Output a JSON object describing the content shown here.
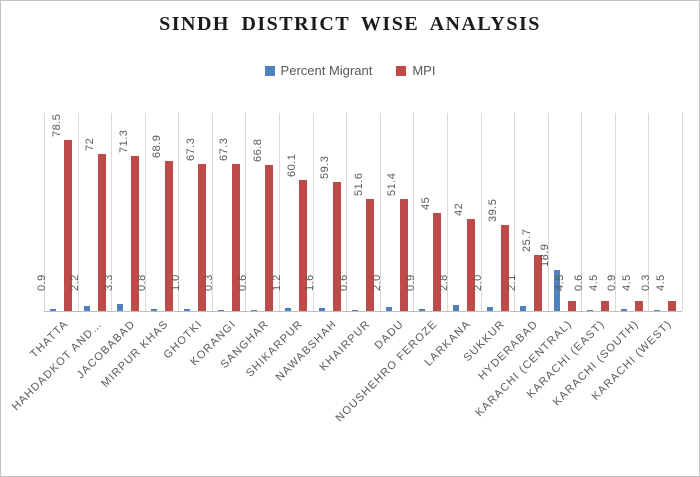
{
  "frame": {
    "background": "#ffffff",
    "border_color": "#c3c3c3"
  },
  "chart_data": {
    "type": "bar",
    "title": "SINDH DISTRICT WISE ANALYSIS",
    "legend_position": "top",
    "grid": "vertical category separators only, no value axis shown",
    "value_axis": {
      "visible": false,
      "implied_range": [
        0,
        90
      ]
    },
    "text_color": "#595959",
    "gridline_color": "#d9d9d9",
    "axis_line_color": "#bfbfbf",
    "categories": [
      "THATTA",
      "HAHDADKOT AND…",
      "JACOBABAD",
      "MIRPUR KHAS",
      "GHOTKI",
      "KORANGI",
      "SANGHAR",
      "SHIKARPUR",
      "NAWABSHAH",
      "KHAIRPUR",
      "DADU",
      "NOUSHEHRO FEROZE",
      "LARKANA",
      "SUKKUR",
      "HYDERABAD",
      "KARACHI (CENTRAL)",
      "KARACHI (EAST)",
      "KARACHI (SOUTH)",
      "KARACHI (WEST)"
    ],
    "series": [
      {
        "name": "Percent Migrant",
        "color": "#4e81bd",
        "values": [
          0.9,
          2.2,
          3.3,
          0.8,
          1.0,
          0.3,
          0.6,
          1.2,
          1.6,
          0.6,
          2.0,
          0.9,
          2.8,
          2.0,
          2.1,
          18.9,
          0.6,
          0.9,
          0.3
        ],
        "labels": [
          "0.9",
          "2.2",
          "3.3",
          "0.8",
          "1.0",
          "0.3",
          "0.6",
          "1.2",
          "1.6",
          "0.6",
          "2.0",
          "0.9",
          "2.8",
          "2.0",
          "2.1",
          "18.9",
          "0.6",
          "0.9",
          "0.3"
        ]
      },
      {
        "name": "MPI",
        "color": "#be4b48",
        "values": [
          78.5,
          72,
          71.3,
          68.9,
          67.3,
          67.3,
          66.8,
          60.1,
          59.3,
          51.6,
          51.4,
          45,
          42,
          39.5,
          25.7,
          4.5,
          4.5,
          4.5,
          4.5
        ],
        "labels": [
          "78.5",
          "72",
          "71.3",
          "68.9",
          "67.3",
          "67.3",
          "66.8",
          "60.1",
          "59.3",
          "51.6",
          "51.4",
          "45",
          "42",
          "39.5",
          "25.7",
          "4.5",
          "4.5",
          "4.5",
          "4.5"
        ]
      }
    ]
  }
}
